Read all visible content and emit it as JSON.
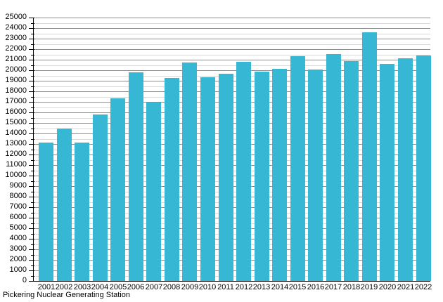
{
  "chart_data": {
    "type": "bar",
    "title": "",
    "caption": "Pickering Nuclear Generating Station",
    "categories": [
      "2001",
      "2002",
      "2003",
      "2004",
      "2005",
      "2006",
      "2007",
      "2008",
      "2009",
      "2010",
      "2011",
      "2012",
      "2013",
      "2014",
      "2015",
      "2016",
      "2017",
      "2018",
      "2019",
      "2020",
      "2021",
      "2022"
    ],
    "values": [
      13100,
      14450,
      13100,
      15800,
      17350,
      19800,
      16950,
      19250,
      20700,
      19300,
      19650,
      20800,
      19850,
      20150,
      21300,
      20050,
      21500,
      20850,
      23600,
      20600,
      21100,
      21400
    ],
    "xlabel": "",
    "ylabel": "",
    "ylim": [
      0,
      25000
    ],
    "ytick_major_interval": 1000,
    "ytick_minor_interval": 500,
    "ytick_labels": [
      "0",
      "1000",
      "2000",
      "3000",
      "4000",
      "5000",
      "6000",
      "7000",
      "8000",
      "9000",
      "10000",
      "11000",
      "12000",
      "13000",
      "14000",
      "15000",
      "16000",
      "17000",
      "18000",
      "19000",
      "20000",
      "21000",
      "22000",
      "23000",
      "24000",
      "25000"
    ],
    "grid": "horizontal, major lines every 1000 and minor lines every 500",
    "legend": "none",
    "colors": {
      "bar": "#36b7d3",
      "gridline_major": "#8c8c8c",
      "gridline_minor": "#d9d9d9",
      "axis": "#000000",
      "text": "#000000",
      "background": "#ffffff"
    }
  }
}
